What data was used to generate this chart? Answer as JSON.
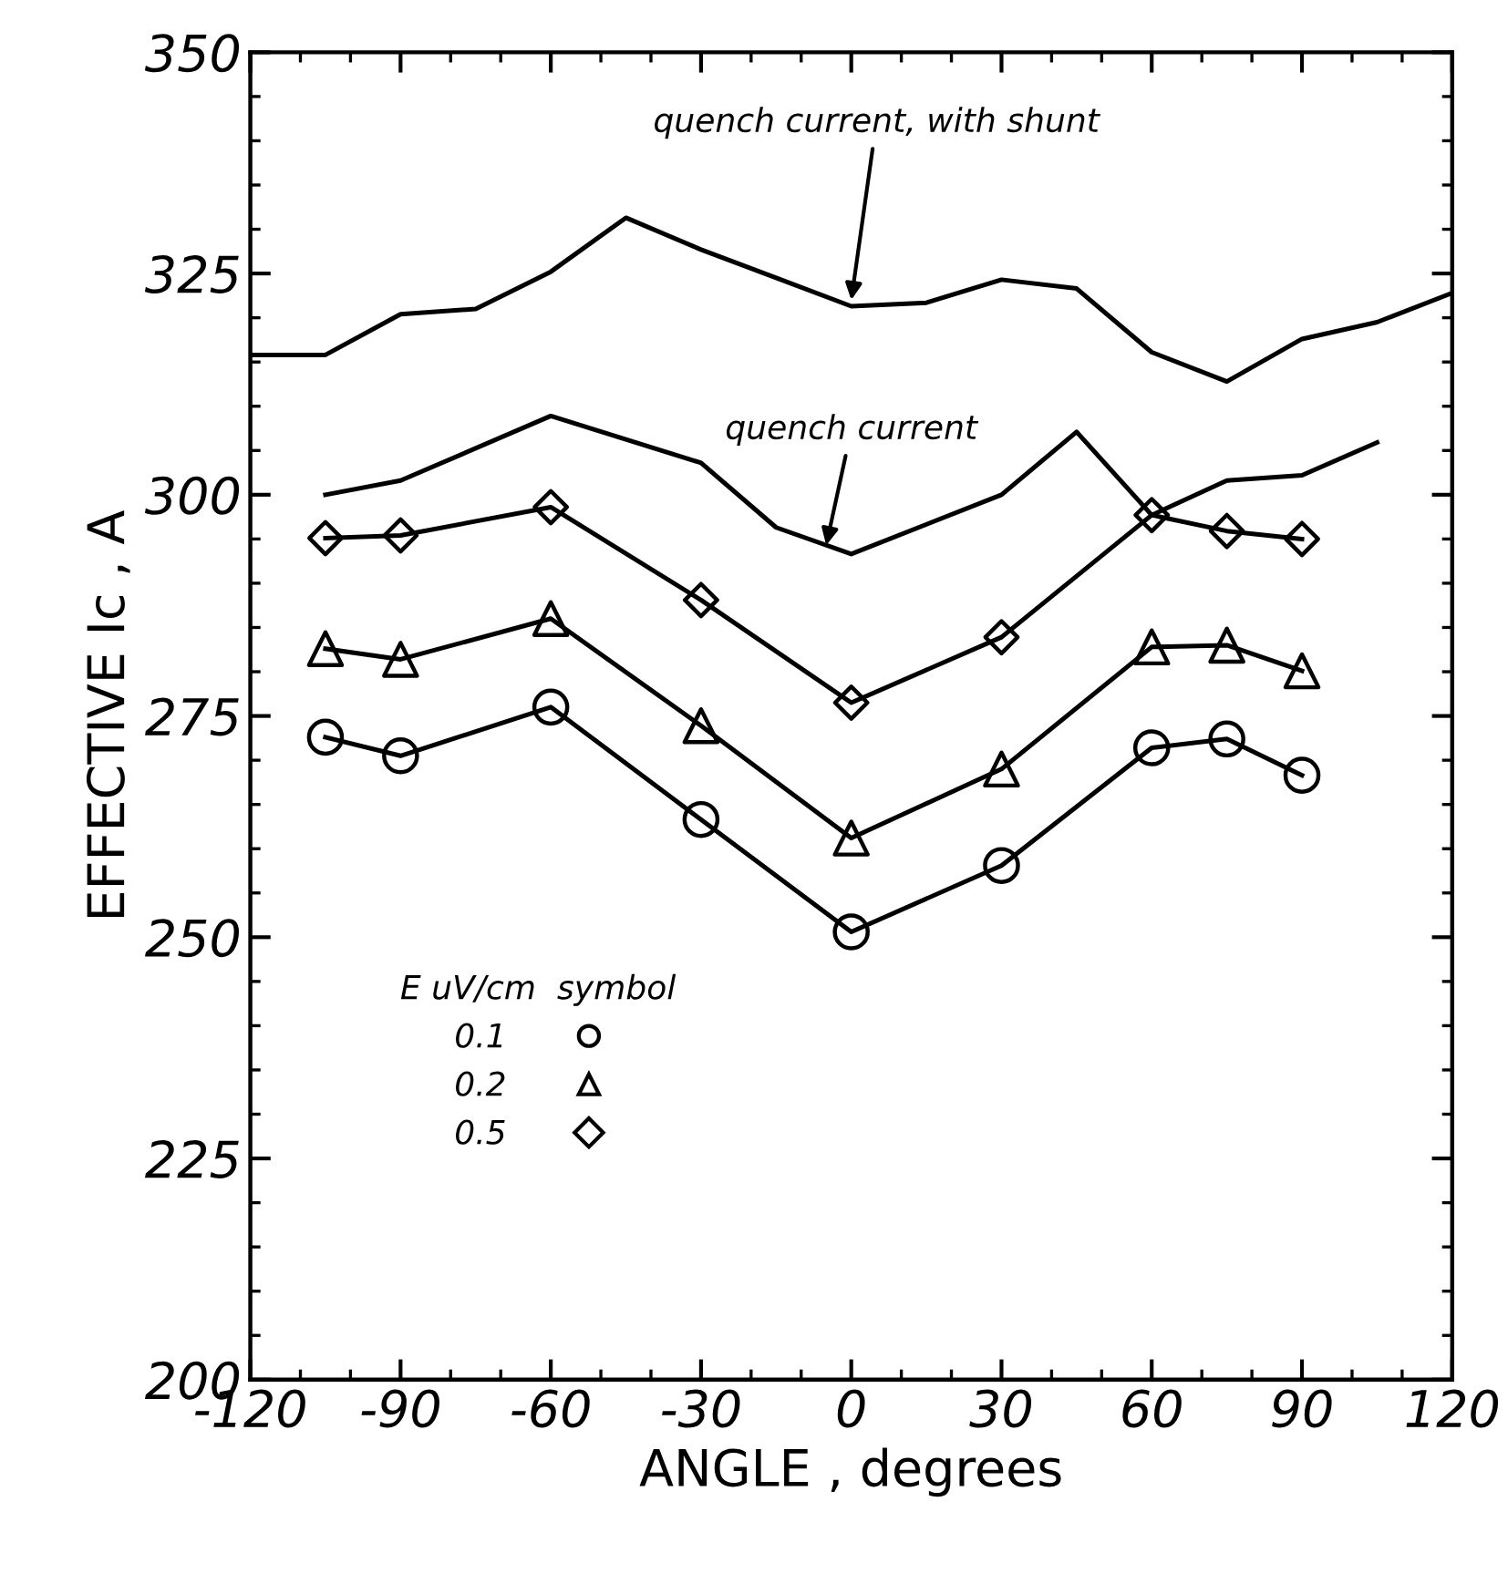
{
  "chart_data": {
    "type": "line",
    "xlabel": "ANGLE , degrees",
    "ylabel": "EFFECTIVE Ic , A",
    "legend_title": "E uV/cm  symbol",
    "legend": "bottom left",
    "grid": false,
    "line_style": "solid",
    "xlim": [
      -120,
      120
    ],
    "xticks": [
      -120,
      -90,
      -60,
      -30,
      0,
      30,
      60,
      90,
      120
    ],
    "ylim": [
      200,
      350
    ],
    "yticks": [
      200,
      225,
      250,
      275,
      300,
      325,
      350
    ],
    "series": [
      {
        "color": "#000000",
        "marker": "none",
        "x": [
          -120,
          -105,
          -90,
          -75,
          -60,
          -45,
          -30,
          -15,
          0,
          15,
          30,
          45,
          60,
          75,
          90,
          105,
          120
        ],
        "values": [
          315.8,
          315.8,
          320.4,
          321.0,
          325.2,
          331.3,
          327.7,
          324.5,
          321.3,
          321.7,
          324.3,
          323.3,
          316.1,
          312.8,
          317.6,
          319.5,
          322.8
        ]
      },
      {
        "color": "#000000",
        "marker": "none",
        "x": [
          -105,
          -90,
          -60,
          -30,
          -15,
          0,
          30,
          45,
          60,
          75,
          90,
          105
        ],
        "values": [
          300.0,
          301.6,
          308.9,
          303.6,
          296.3,
          293.3,
          300.0,
          307.1,
          297.7,
          301.6,
          302.2,
          305.9
        ]
      },
      {
        "name": "0.1",
        "color": "#000000",
        "marker": "circle",
        "x": [
          -105,
          -90,
          -60,
          -30,
          0,
          30,
          60,
          75,
          90
        ],
        "values": [
          272.6,
          270.5,
          276.0,
          263.3,
          250.6,
          258.1,
          271.4,
          272.4,
          268.3
        ]
      },
      {
        "name": "0.2",
        "color": "#000000",
        "marker": "triangle",
        "x": [
          -105,
          -90,
          -60,
          -30,
          0,
          30,
          60,
          75,
          90
        ],
        "values": [
          282.6,
          281.4,
          286.0,
          273.9,
          261.2,
          269.0,
          282.8,
          283.0,
          280.1
        ]
      },
      {
        "name": "0.5",
        "color": "#000000",
        "marker": "diamond",
        "x": [
          -105,
          -90,
          -60,
          -30,
          0,
          30,
          60,
          75,
          90
        ],
        "values": [
          295.1,
          295.4,
          298.6,
          288.1,
          276.5,
          283.9,
          297.7,
          295.9,
          295.0
        ]
      }
    ],
    "annotations": [
      {
        "text": "quench current, with shunt",
        "x": 0,
        "y": 322
      },
      {
        "text": "quench current",
        "x": -5,
        "y": 294.3
      }
    ]
  }
}
